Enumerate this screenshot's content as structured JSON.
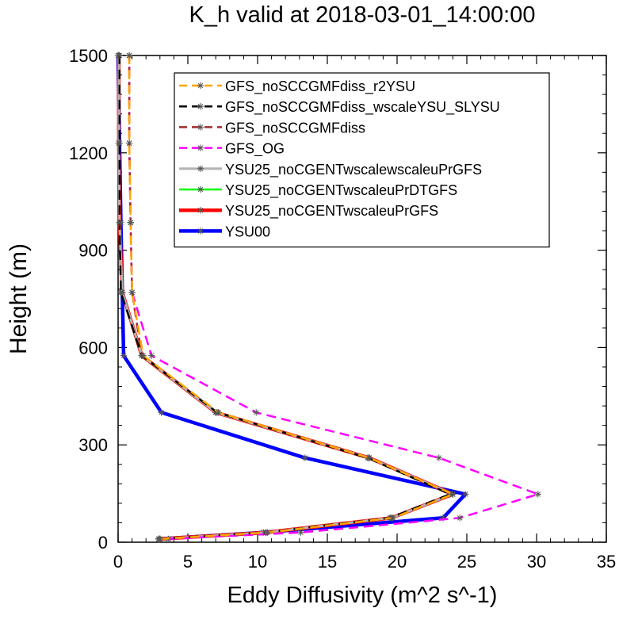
{
  "chart_data": {
    "type": "line",
    "title": "K_h valid at 2018-03-01_14:00:00",
    "xlabel": "Eddy Diffusivity (m^2 s^-1)",
    "ylabel": "Height (m)",
    "xlim": [
      0,
      35
    ],
    "ylim": [
      0,
      1500
    ],
    "xticks": [
      0,
      5,
      10,
      15,
      20,
      25,
      30,
      35
    ],
    "yticks": [
      0,
      300,
      600,
      900,
      1200,
      1500
    ],
    "legend_position": "top-right",
    "grid": false,
    "series": [
      {
        "name": "GFS_noSCCGMFdiss_r2YSU",
        "color": "#ffa500",
        "dash": "dash",
        "width": 2.5,
        "x": [
          3.0,
          10.7,
          19.7,
          24.0,
          18.0,
          7.2,
          1.8,
          1.0,
          0.9,
          0.8,
          0.8
        ],
        "y": [
          10,
          30,
          75,
          148,
          260,
          400,
          575,
          770,
          985,
          1230,
          1500
        ]
      },
      {
        "name": "GFS_noSCCGMFdiss_wscaleYSU_SLYSU",
        "color": "#000000",
        "dash": "dash",
        "width": 2.5,
        "x": [
          2.9,
          10.6,
          19.5,
          23.8,
          17.9,
          7.1,
          1.7,
          0.2,
          0.1,
          0.1,
          0.1
        ],
        "y": [
          10,
          30,
          75,
          148,
          260,
          400,
          575,
          770,
          985,
          1230,
          1500
        ]
      },
      {
        "name": "GFS_noSCCGMFdiss",
        "color": "#a52a2a",
        "dash": "dash",
        "width": 2.5,
        "x": [
          2.9,
          10.6,
          19.5,
          23.8,
          17.9,
          7.1,
          1.7,
          1.0,
          0.9,
          0.8,
          0.8
        ],
        "y": [
          10,
          30,
          75,
          148,
          260,
          400,
          575,
          770,
          985,
          1230,
          1500
        ]
      },
      {
        "name": "GFS_OG",
        "color": "#ff00ff",
        "dash": "dash",
        "width": 2.5,
        "x": [
          3.6,
          13.1,
          24.5,
          30.1,
          23.0,
          9.9,
          2.4,
          1.0,
          0.9,
          0.8,
          0.8
        ],
        "y": [
          10,
          30,
          75,
          148,
          260,
          400,
          575,
          770,
          985,
          1230,
          1500
        ]
      },
      {
        "name": "YSU25_noCGENTwscalewscaleuPrGFS",
        "color": "#b4b4b4",
        "dash": "solid",
        "width": 3,
        "x": [
          3.0,
          10.6,
          19.6,
          24.0,
          18.0,
          7.0,
          1.7,
          0.3,
          0.1,
          0.05,
          0.05
        ],
        "y": [
          10,
          30,
          75,
          148,
          260,
          400,
          575,
          770,
          985,
          1230,
          1500
        ]
      },
      {
        "name": "YSU25_noCGENTwscaleuPrDTGFS",
        "color": "#00ff00",
        "dash": "solid",
        "width": 2.5,
        "x": [
          3.0,
          10.6,
          19.6,
          24.0,
          18.0,
          7.0,
          1.7,
          0.3,
          0.1,
          0.05,
          0.05
        ],
        "y": [
          10,
          30,
          75,
          148,
          260,
          400,
          575,
          770,
          985,
          1230,
          1500
        ]
      },
      {
        "name": "YSU25_noCGENTwscaleuPrGFS",
        "color": "#ff0000",
        "dash": "solid",
        "width": 4.5,
        "x": [
          3.0,
          10.6,
          19.6,
          24.0,
          18.0,
          7.0,
          1.7,
          0.3,
          0.1,
          0.05,
          0.05
        ],
        "y": [
          10,
          30,
          75,
          148,
          260,
          400,
          575,
          770,
          985,
          1230,
          1500
        ]
      },
      {
        "name": "YSU00",
        "color": "#0000ff",
        "dash": "solid",
        "width": 4.5,
        "x": [
          2.9,
          10.4,
          23.3,
          24.9,
          13.4,
          3.1,
          0.4,
          0.3,
          0.2,
          0.1,
          0.0
        ],
        "y": [
          10,
          30,
          75,
          148,
          260,
          400,
          575,
          770,
          985,
          1230,
          1500
        ]
      }
    ]
  }
}
